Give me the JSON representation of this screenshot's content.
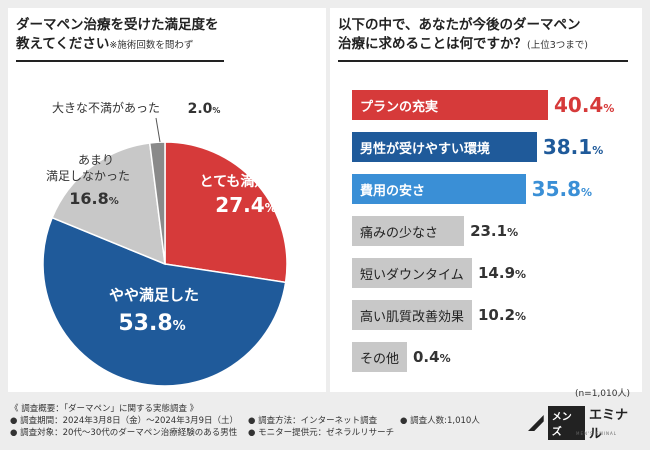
{
  "left_panel": {
    "title_line1": "ダーマペン治療を受けた満足度を",
    "title_line2": "教えてください",
    "title_note": "※施術回数を問わず"
  },
  "right_panel": {
    "title_line1": "以下の中で、あなたが今後のダーマペン",
    "title_line2": "治療に求めることは何ですか？",
    "title_note": "(上位3つまで)"
  },
  "chart_data": [
    {
      "type": "pie",
      "title": "ダーマペン治療を受けた満足度を教えてください",
      "start": "12 o'clock, clockwise",
      "slices": [
        {
          "label": "とても満足した",
          "value": 27.4,
          "display": "27.4",
          "color": "#d63a3a"
        },
        {
          "label": "やや満足した",
          "value": 53.8,
          "display": "53.8",
          "color": "#1f5a9a"
        },
        {
          "label": "あまり満足しなかった",
          "value": 16.8,
          "display": "16.8",
          "color": "#c8c8c8"
        },
        {
          "label": "大きな不満があった",
          "value": 2.0,
          "display": "2.0",
          "color": "#8a8a8a"
        }
      ],
      "unit": "%"
    },
    {
      "type": "bar",
      "orientation": "horizontal",
      "title": "以下の中で、あなたが今後のダーマペン治療に求めることは何ですか？",
      "categories": [
        "プランの充実",
        "男性が受けやすい環境",
        "費用の安さ",
        "痛みの少なさ",
        "短いダウンタイム",
        "高い肌質改善効果",
        "その他"
      ],
      "values": [
        40.4,
        38.1,
        35.8,
        23.1,
        14.9,
        10.2,
        0.4
      ],
      "displays": [
        "40.4",
        "38.1",
        "35.8",
        "23.1",
        "14.9",
        "10.2",
        "0.4"
      ],
      "colors": [
        "#d63a3a",
        "#1f5a9a",
        "#3a8fd6",
        "#c8c8c8",
        "#c8c8c8",
        "#c8c8c8",
        "#c8c8c8"
      ],
      "xlim": [
        0,
        40.4
      ],
      "unit": "%"
    }
  ],
  "sample_size": "(n=1,010人)",
  "footer": {
    "line1": "《 調査概要：「ダーマペン」に関する実態調査 》",
    "period": "● 調査期間：2024年3月8日（金）～2024年3月9日（土）",
    "method": "● 調査方法：インターネット調査",
    "count": "● 調査人数:1,010人",
    "target": "● 調査対象：20代～30代のダーマペン治療経験のある男性",
    "monitor": "● モニター提供元：ゼネラルリサーチ"
  },
  "logo": {
    "box_text": "メンズ",
    "name": "エミナル",
    "sub": "MEN'S EMINAL"
  }
}
